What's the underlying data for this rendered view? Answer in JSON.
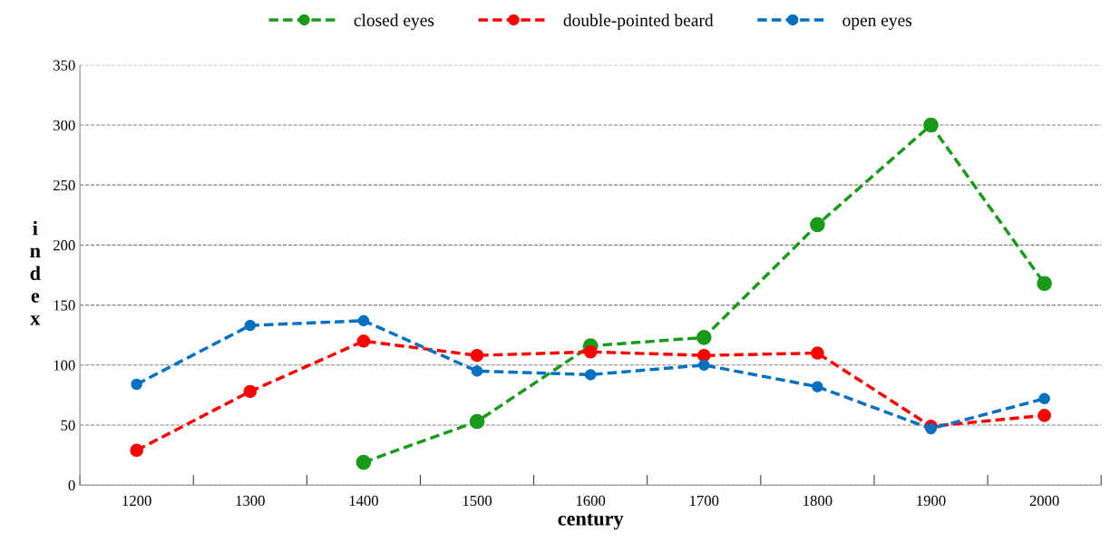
{
  "chart_data": {
    "type": "line",
    "xlabel": "century",
    "ylabel": "index",
    "categories": [
      "1200",
      "1300",
      "1400",
      "1500",
      "1600",
      "1700",
      "1800",
      "1900",
      "2000"
    ],
    "series": [
      {
        "name": "closed eyes",
        "color": "#1a9a1a",
        "values": [
          null,
          null,
          19,
          53,
          116,
          123,
          217,
          300,
          168
        ]
      },
      {
        "name": "double-pointed beard",
        "color": "#ff0000",
        "values": [
          29,
          78,
          120,
          108,
          111,
          108,
          110,
          49,
          58
        ]
      },
      {
        "name": "open eyes",
        "color": "#0070c0",
        "values": [
          84,
          133,
          137,
          95,
          92,
          100,
          82,
          47,
          72
        ]
      }
    ],
    "ylim": [
      0,
      350
    ],
    "yticks": [
      0,
      50,
      100,
      150,
      200,
      250,
      300,
      350
    ],
    "grid": "y",
    "legend": "top",
    "marker": "circle",
    "line_style": "dashed"
  }
}
